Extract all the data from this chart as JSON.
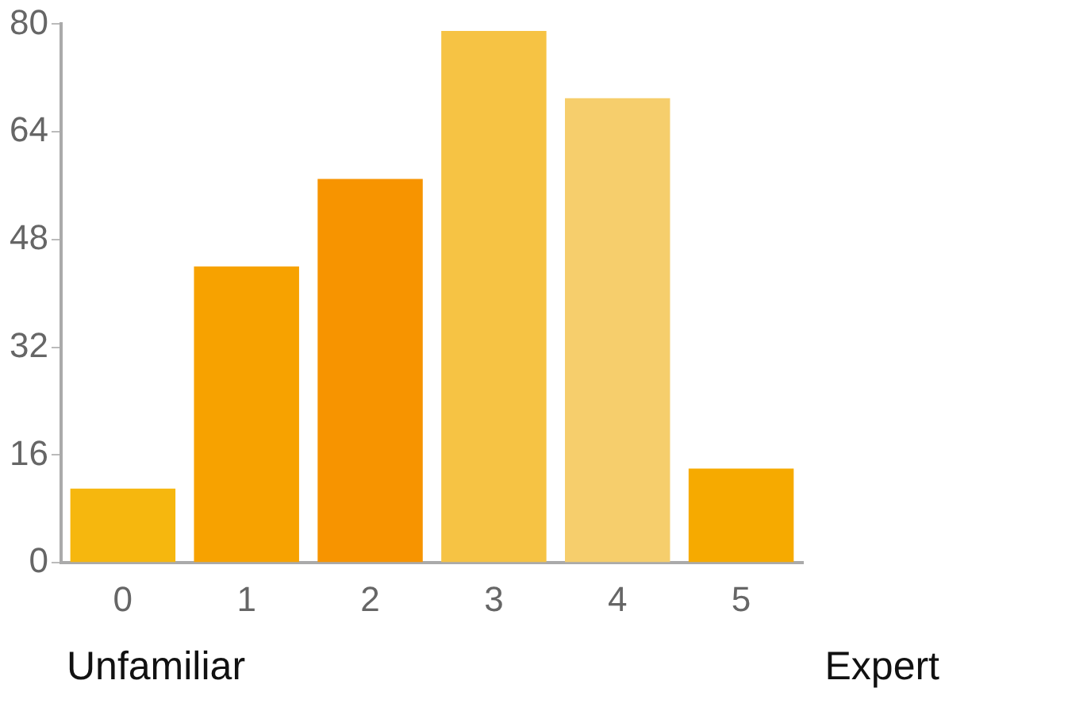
{
  "chart_data": {
    "type": "bar",
    "categories": [
      "0",
      "1",
      "2",
      "3",
      "4",
      "5"
    ],
    "values": [
      11,
      44,
      57,
      79,
      69,
      14
    ],
    "colors": [
      "#f6b70e",
      "#f7a200",
      "#f79400",
      "#f6c344",
      "#f6ce6c",
      "#f6aa00"
    ],
    "ylim": [
      0,
      80
    ],
    "yticks": [
      0,
      16,
      32,
      48,
      64,
      80
    ],
    "grid": false,
    "legend": false,
    "annotations": [
      "Unfamiliar",
      "Expert"
    ]
  }
}
